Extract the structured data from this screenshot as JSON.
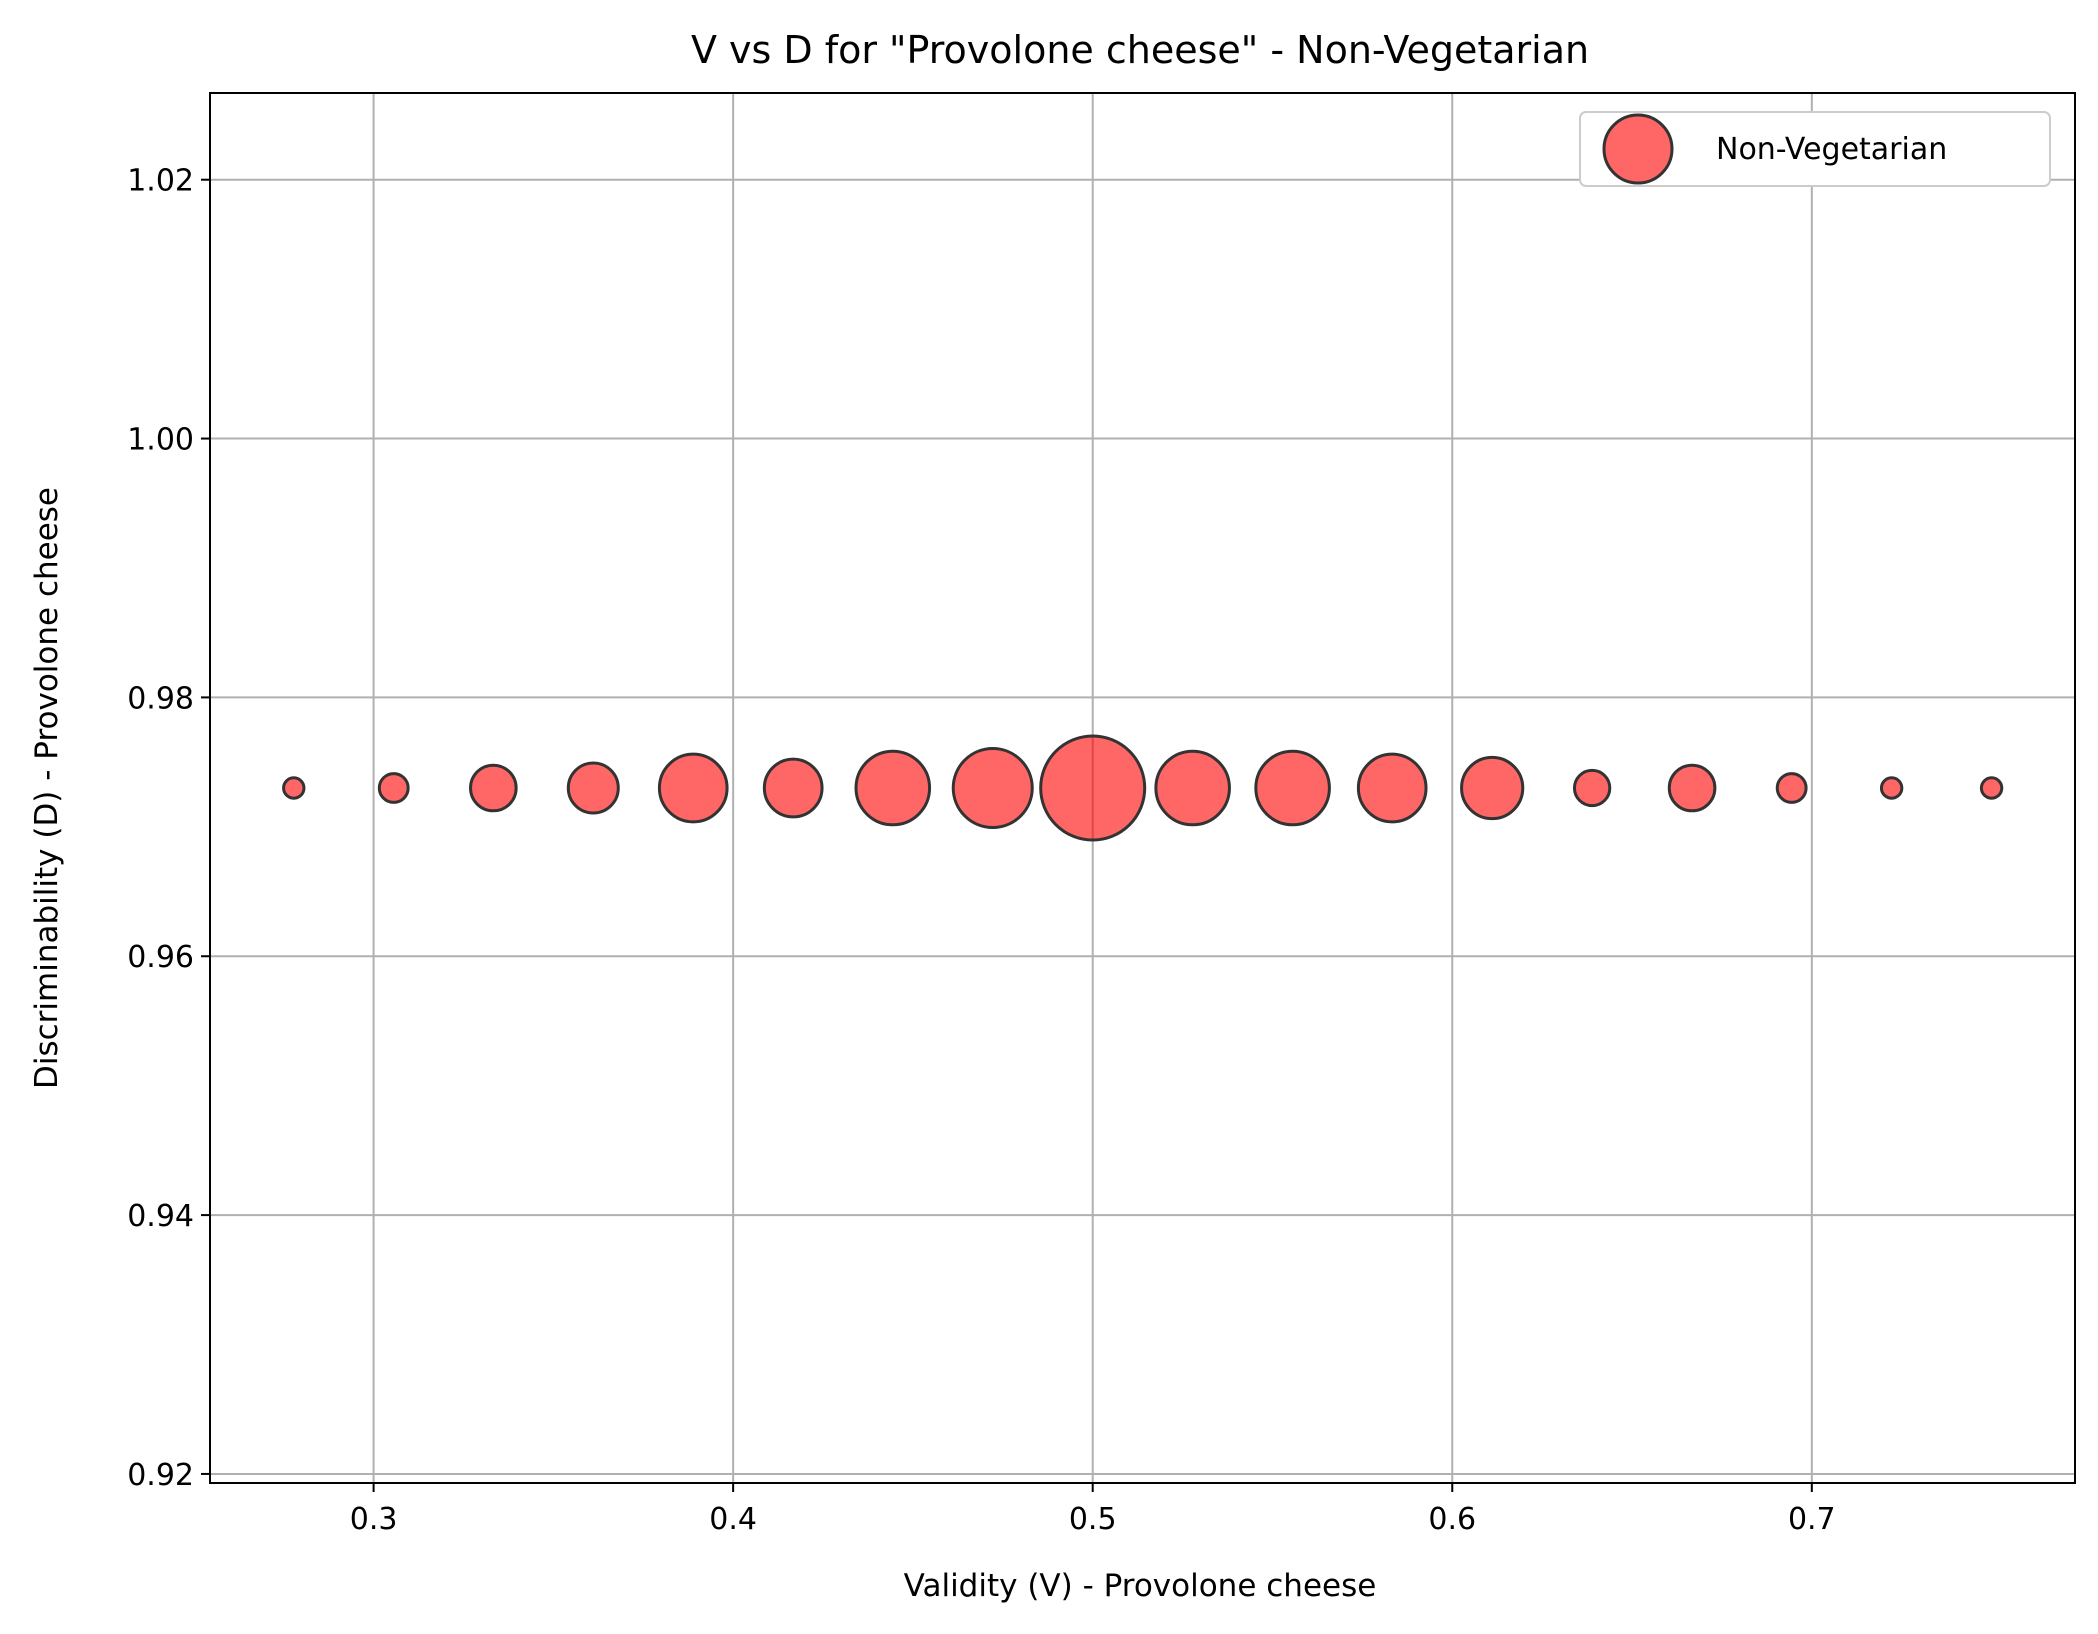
{
  "chart_data": {
    "type": "scatter",
    "title": "V vs D for \"Provolone cheese\" - Non-Vegetarian",
    "xlabel": "Validity (V) - Provolone cheese",
    "ylabel": "Discriminability (D) - Provolone cheese",
    "xlim": [
      0.2545,
      0.7732
    ],
    "ylim": [
      0.9193,
      1.0267
    ],
    "x_ticks": [
      0.3,
      0.4,
      0.5,
      0.6,
      0.7
    ],
    "x_tick_labels": [
      "0.3",
      "0.4",
      "0.5",
      "0.6",
      "0.7"
    ],
    "y_ticks": [
      0.92,
      0.94,
      0.96,
      0.98,
      1.0,
      1.02
    ],
    "y_tick_labels": [
      "0.92",
      "0.94",
      "0.96",
      "0.98",
      "1.00",
      "1.02"
    ],
    "grid": true,
    "legend_position": "top-right",
    "series": [
      {
        "name": "Non-Vegetarian",
        "color": "#ff0000",
        "edge_color": "#333333",
        "points": [
          {
            "x": 0.2778,
            "y": 0.973,
            "size": 1
          },
          {
            "x": 0.3056,
            "y": 0.973,
            "size": 2
          },
          {
            "x": 0.3333,
            "y": 0.973,
            "size": 5
          },
          {
            "x": 0.3611,
            "y": 0.973,
            "size": 6
          },
          {
            "x": 0.3889,
            "y": 0.973,
            "size": 11
          },
          {
            "x": 0.4167,
            "y": 0.973,
            "size": 8
          },
          {
            "x": 0.4444,
            "y": 0.973,
            "size": 13
          },
          {
            "x": 0.4722,
            "y": 0.973,
            "size": 15
          },
          {
            "x": 0.5,
            "y": 0.973,
            "size": 26
          },
          {
            "x": 0.5278,
            "y": 0.973,
            "size": 13
          },
          {
            "x": 0.5556,
            "y": 0.973,
            "size": 13
          },
          {
            "x": 0.5833,
            "y": 0.973,
            "size": 11
          },
          {
            "x": 0.6111,
            "y": 0.973,
            "size": 9
          },
          {
            "x": 0.6389,
            "y": 0.973,
            "size": 3
          },
          {
            "x": 0.6667,
            "y": 0.973,
            "size": 5
          },
          {
            "x": 0.6944,
            "y": 0.973,
            "size": 2
          },
          {
            "x": 0.7222,
            "y": 0.973,
            "size": 1
          },
          {
            "x": 0.75,
            "y": 0.973,
            "size": 1
          }
        ]
      }
    ]
  }
}
